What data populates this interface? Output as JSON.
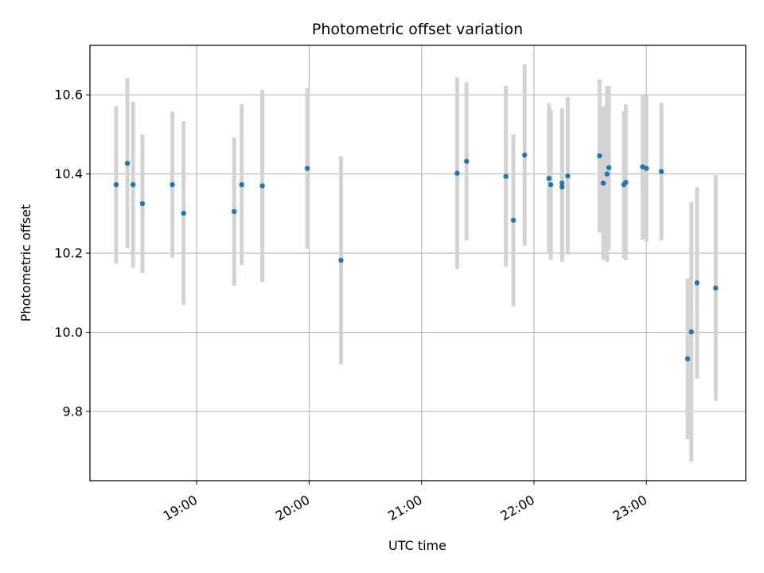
{
  "chart_data": {
    "type": "scatter",
    "title": "Photometric offset variation",
    "xlabel": "UTC time",
    "ylabel": "Photometric offset",
    "x_ticks": [
      "19:00",
      "20:00",
      "21:00",
      "22:00",
      "23:00"
    ],
    "y_ticks": [
      "9.8",
      "10.0",
      "10.2",
      "10.4",
      "10.6"
    ],
    "xlim": [
      "18:03",
      "23:53"
    ],
    "ylim": [
      9.625,
      10.725
    ],
    "grid": true,
    "colors": {
      "point": "#1f77b4",
      "errorbar": "#d3d3d3",
      "grid": "#b0b0b0"
    },
    "points": [
      {
        "t": "18:17",
        "y": 10.373,
        "err": 0.199
      },
      {
        "t": "18:23",
        "y": 10.427,
        "err": 0.215
      },
      {
        "t": "18:26",
        "y": 10.373,
        "err": 0.21
      },
      {
        "t": "18:31",
        "y": 10.325,
        "err": 0.175
      },
      {
        "t": "18:47",
        "y": 10.373,
        "err": 0.184
      },
      {
        "t": "18:53",
        "y": 10.301,
        "err": 0.232
      },
      {
        "t": "19:20",
        "y": 10.305,
        "err": 0.187
      },
      {
        "t": "19:24",
        "y": 10.373,
        "err": 0.203
      },
      {
        "t": "19:35",
        "y": 10.37,
        "err": 0.243
      },
      {
        "t": "19:59",
        "y": 10.414,
        "err": 0.203
      },
      {
        "t": "20:17",
        "y": 10.182,
        "err": 0.263
      },
      {
        "t": "21:19",
        "y": 10.402,
        "err": 0.242
      },
      {
        "t": "21:24",
        "y": 10.432,
        "err": 0.2
      },
      {
        "t": "21:45",
        "y": 10.394,
        "err": 0.229
      },
      {
        "t": "21:49",
        "y": 10.283,
        "err": 0.217
      },
      {
        "t": "21:55",
        "y": 10.448,
        "err": 0.229
      },
      {
        "t": "22:08",
        "y": 10.389,
        "err": 0.19
      },
      {
        "t": "22:09",
        "y": 10.373,
        "err": 0.19
      },
      {
        "t": "22:15",
        "y": 10.367,
        "err": 0.189
      },
      {
        "t": "22:15",
        "y": 10.377,
        "err": 0.189
      },
      {
        "t": "22:18",
        "y": 10.395,
        "err": 0.199
      },
      {
        "t": "22:35",
        "y": 10.446,
        "err": 0.193
      },
      {
        "t": "22:37",
        "y": 10.377,
        "err": 0.194
      },
      {
        "t": "22:39",
        "y": 10.4,
        "err": 0.222
      },
      {
        "t": "22:40",
        "y": 10.416,
        "err": 0.207
      },
      {
        "t": "22:48",
        "y": 10.373,
        "err": 0.186
      },
      {
        "t": "22:49",
        "y": 10.379,
        "err": 0.197
      },
      {
        "t": "22:58",
        "y": 10.418,
        "err": 0.184
      },
      {
        "t": "23:00",
        "y": 10.414,
        "err": 0.185
      },
      {
        "t": "23:08",
        "y": 10.406,
        "err": 0.174
      },
      {
        "t": "23:22",
        "y": 9.933,
        "err": 0.203
      },
      {
        "t": "23:24",
        "y": 10.001,
        "err": 0.328
      },
      {
        "t": "23:27",
        "y": 10.125,
        "err": 0.242
      },
      {
        "t": "23:37",
        "y": 10.112,
        "err": 0.285
      }
    ]
  }
}
